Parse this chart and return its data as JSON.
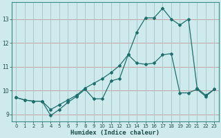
{
  "xlabel": "Humidex (Indice chaleur)",
  "background_color": "#ceeaec",
  "grid_color_h": "#c8a0a0",
  "grid_color_v": "#a8c8cc",
  "line_color": "#1e6e6e",
  "xlim": [
    -0.5,
    23.5
  ],
  "ylim": [
    8.7,
    13.7
  ],
  "xticks": [
    0,
    1,
    2,
    3,
    4,
    5,
    6,
    7,
    8,
    9,
    10,
    11,
    12,
    13,
    14,
    15,
    16,
    17,
    18,
    19,
    20,
    21,
    22,
    23
  ],
  "yticks": [
    9,
    10,
    11,
    12,
    13
  ],
  "line1_x": [
    0,
    1,
    2,
    3,
    4,
    5,
    6,
    7,
    8,
    9,
    10,
    11,
    12,
    13,
    14,
    15,
    16,
    17,
    18,
    19,
    20,
    21,
    22,
    23
  ],
  "line1_y": [
    9.7,
    9.6,
    9.55,
    9.55,
    8.95,
    9.2,
    9.5,
    9.75,
    10.05,
    9.65,
    9.65,
    10.4,
    10.5,
    11.5,
    11.15,
    11.1,
    11.15,
    11.5,
    11.55,
    9.9,
    9.9,
    10.05,
    9.75,
    10.05
  ],
  "line2_x": [
    0,
    1,
    2,
    3,
    4,
    5,
    6,
    7,
    8,
    9,
    10,
    11,
    12,
    13,
    14,
    15,
    16,
    17,
    18,
    19,
    20,
    21,
    22,
    23
  ],
  "line2_y": [
    9.7,
    9.6,
    9.55,
    9.55,
    9.2,
    9.4,
    9.6,
    9.8,
    10.1,
    10.3,
    10.5,
    10.75,
    11.05,
    11.5,
    12.45,
    13.05,
    13.05,
    13.45,
    13.0,
    12.75,
    13.0,
    10.1,
    9.8,
    10.05
  ]
}
